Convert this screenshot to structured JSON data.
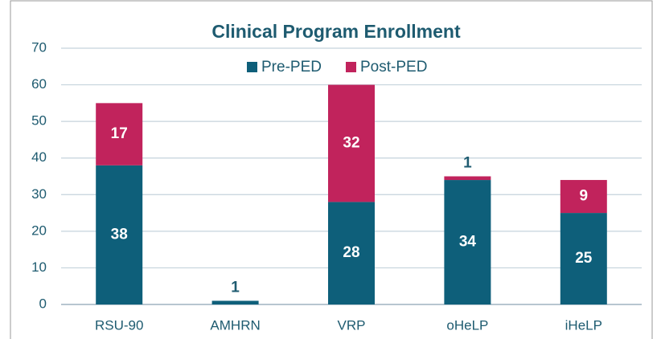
{
  "chart_data": {
    "type": "stacked_bar",
    "title": "Clinical Program Enrollment",
    "categories": [
      "RSU-90",
      "AMHRN",
      "VRP",
      "oHeLP",
      "iHeLP"
    ],
    "series": [
      {
        "name": "Pre-PED",
        "color": "#0e5f7a",
        "values": [
          38,
          1,
          28,
          34,
          25
        ]
      },
      {
        "name": "Post-PED",
        "color": "#c1235c",
        "values": [
          17,
          null,
          32,
          1,
          9
        ]
      }
    ],
    "ylim": [
      0,
      70
    ],
    "yticks": [
      0,
      10,
      20,
      30,
      40,
      50,
      60,
      70
    ],
    "grid": true,
    "legend": "top"
  }
}
